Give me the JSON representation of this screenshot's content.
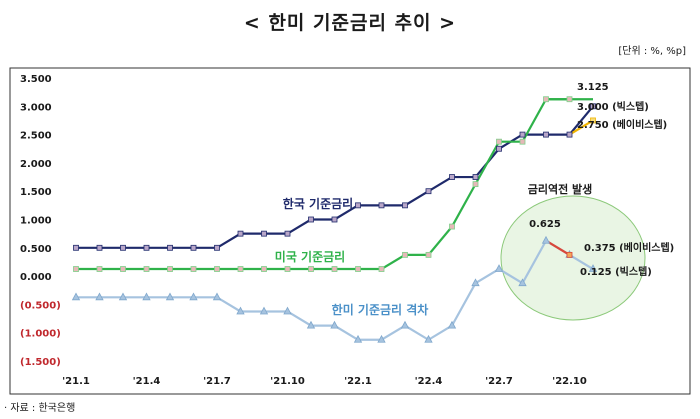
{
  "title": "< 한미 기준금리 추이 >",
  "unit_note": "[단위 : %, %p]",
  "source": "· 자료 : 한국은행",
  "chart_data": {
    "type": "line",
    "ylim": [
      -1.5,
      3.5
    ],
    "y_ticks": [
      3.5,
      3.0,
      2.5,
      2.0,
      1.5,
      1.0,
      0.5,
      0.0,
      -0.5,
      -1.0,
      -1.5
    ],
    "y_tick_labels": [
      "3.500",
      "3.000",
      "2.500",
      "2.000",
      "1.500",
      "1.000",
      "0.500",
      "0.000",
      "(0.500)",
      "(1.000)",
      "(1.500)"
    ],
    "x_tick_labels": [
      "'21.1",
      "'21.4",
      "'21.7",
      "'21.10",
      "'22.1",
      "'22.4",
      "'22.7",
      "'22.10"
    ],
    "x_tick_index": [
      0,
      3,
      6,
      9,
      12,
      15,
      18,
      21
    ],
    "series": [
      {
        "name": "한국 기준금리",
        "color": "#1f2a6b",
        "marker": "square",
        "values": [
          0.5,
          0.5,
          0.5,
          0.5,
          0.5,
          0.5,
          0.5,
          0.75,
          0.75,
          0.75,
          1.0,
          1.0,
          1.25,
          1.25,
          1.25,
          1.5,
          1.75,
          1.75,
          2.25,
          2.5,
          2.5,
          2.5,
          3.0
        ]
      },
      {
        "name": "미국 기준금리",
        "color": "#2fb24a",
        "marker": "square",
        "values": [
          0.125,
          0.125,
          0.125,
          0.125,
          0.125,
          0.125,
          0.125,
          0.125,
          0.125,
          0.125,
          0.125,
          0.125,
          0.125,
          0.125,
          0.375,
          0.375,
          0.875,
          1.625,
          2.375,
          2.375,
          3.125,
          3.125
        ]
      },
      {
        "name": "한미 기준금리 격차",
        "color": "#a6c3df",
        "marker": "triangle",
        "values": [
          -0.375,
          -0.375,
          -0.375,
          -0.375,
          -0.375,
          -0.375,
          -0.375,
          -0.625,
          -0.625,
          -0.625,
          -0.875,
          -0.875,
          -1.125,
          -1.125,
          -0.875,
          -1.125,
          -0.875,
          -0.125,
          0.125,
          -0.125,
          0.625,
          0.375,
          0.125
        ]
      }
    ],
    "scenario": {
      "us_big_step": {
        "x": [
          20,
          21,
          22
        ],
        "values": [
          3.125,
          3.125,
          3.125
        ]
      },
      "us_baby_step_korea": {
        "x": [
          21,
          22
        ],
        "values": [
          2.5,
          2.75
        ],
        "color": "#f0b400"
      },
      "gap_baby_step": {
        "x": [
          20,
          21
        ],
        "values": [
          0.625,
          0.375
        ],
        "color": "#d9483b"
      }
    },
    "annotations": [
      {
        "text": "3.125",
        "series": "us",
        "x": 22,
        "y": 3.125
      },
      {
        "text": "3.000 (빅스텝)",
        "x": 22,
        "y": 3.0
      },
      {
        "text": "2.750 (베이비스텝)",
        "x": 22,
        "y": 2.75
      },
      {
        "text": "0.625",
        "x": 20,
        "y": 0.625
      },
      {
        "text": "0.375 (베이비스텝)",
        "x": 21,
        "y": 0.375
      },
      {
        "text": "0.125 (빅스텝)",
        "x": 22,
        "y": 0.125
      },
      {
        "text": "금리역전 발생"
      }
    ],
    "grid": false
  }
}
